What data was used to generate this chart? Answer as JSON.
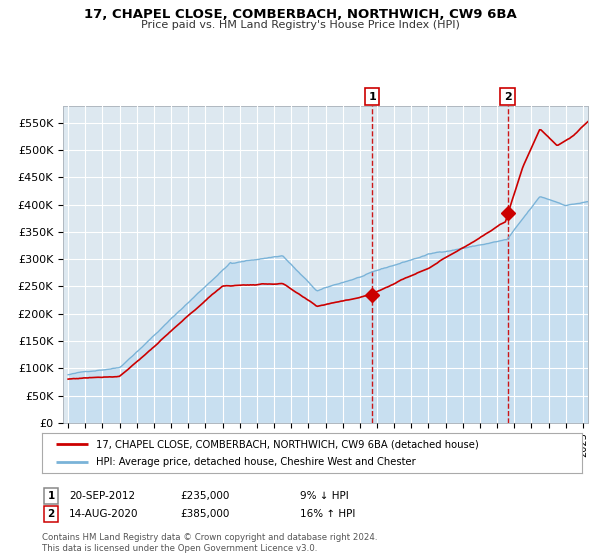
{
  "title1": "17, CHAPEL CLOSE, COMBERBACH, NORTHWICH, CW9 6BA",
  "title2": "Price paid vs. HM Land Registry's House Price Index (HPI)",
  "legend_house": "17, CHAPEL CLOSE, COMBERBACH, NORTHWICH, CW9 6BA (detached house)",
  "legend_hpi": "HPI: Average price, detached house, Cheshire West and Chester",
  "annotation1_date": "20-SEP-2012",
  "annotation1_price": "£235,000",
  "annotation1_pct": "9% ↓ HPI",
  "annotation2_date": "14-AUG-2020",
  "annotation2_price": "£385,000",
  "annotation2_pct": "16% ↑ HPI",
  "footer": "Contains HM Land Registry data © Crown copyright and database right 2024.\nThis data is licensed under the Open Government Licence v3.0.",
  "hpi_color": "#7ab3d8",
  "hpi_fill_color": "#c8dff0",
  "house_color": "#cc0000",
  "marker_color": "#cc0000",
  "vline_color": "#cc0000",
  "bg_chart": "#dde8f0",
  "bg_figure": "#ffffff",
  "grid_color": "#ffffff",
  "ylim": [
    0,
    580000
  ],
  "yticks": [
    0,
    50000,
    100000,
    150000,
    200000,
    250000,
    300000,
    350000,
    400000,
    450000,
    500000,
    550000
  ],
  "sale1_x": 2012.72,
  "sale1_y": 235000,
  "sale2_x": 2020.62,
  "sale2_y": 385000,
  "xmin": 1995,
  "xmax": 2025
}
